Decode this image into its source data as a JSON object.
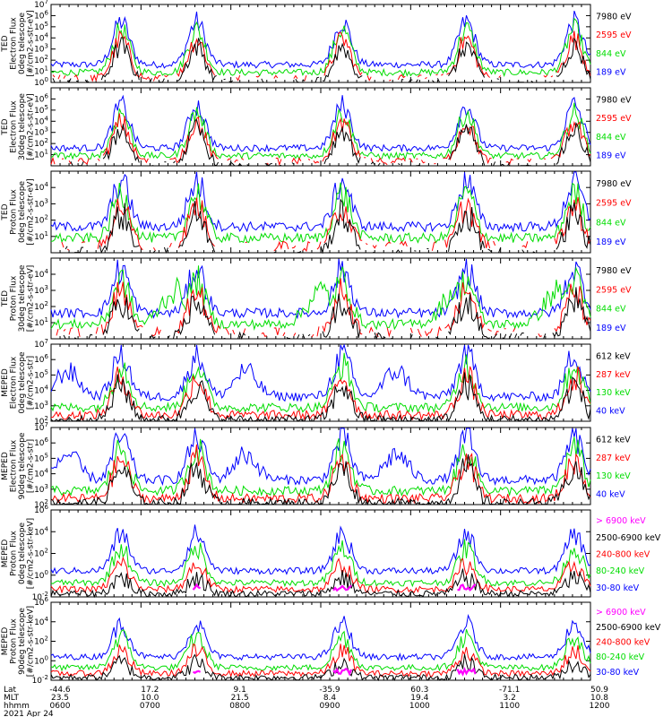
{
  "footer": {
    "rows": [
      "Lat",
      "MLT",
      "hhmm"
    ],
    "date": "2021 Apr 24",
    "columns": [
      {
        "lat": "-44.6",
        "mlt": "23.5",
        "hhmm": "0600"
      },
      {
        "lat": "17.2",
        "mlt": "10.0",
        "hhmm": "0700"
      },
      {
        "lat": "9.1",
        "mlt": "21.5",
        "hhmm": "0800"
      },
      {
        "lat": "-35.9",
        "mlt": "8.4",
        "hhmm": "0900"
      },
      {
        "lat": "60.3",
        "mlt": "19.4",
        "hhmm": "1000"
      },
      {
        "lat": "-71.1",
        "mlt": "3.2",
        "hhmm": "1100"
      },
      {
        "lat": "50.9",
        "mlt": "10.8",
        "hhmm": "1200"
      }
    ]
  },
  "chart_data": [
    {
      "type": "line",
      "ylabel": [
        "TED",
        "Electron Flux",
        "0deg telescope",
        "[#/cm2-s-str-eV]"
      ],
      "y_scale": "log",
      "ylim": [
        1,
        10000000
      ],
      "yticks": [
        "10^0",
        "10^1",
        "10^2",
        "10^3",
        "10^4",
        "10^5",
        "10^6",
        "10^7"
      ],
      "series": [
        {
          "name": "7980 eV",
          "color": "#000000"
        },
        {
          "name": "2595 eV",
          "color": "#ff0000"
        },
        {
          "name": "844 eV",
          "color": "#00dd00"
        },
        {
          "name": "189 eV",
          "color": "#0000ff"
        }
      ]
    },
    {
      "type": "line",
      "ylabel": [
        "TED",
        "Electron Flux",
        "30deg telescope",
        "[#/cm2-s-str-eV]"
      ],
      "y_scale": "log",
      "ylim": [
        1,
        10000000
      ],
      "yticks": [
        "10^1",
        "10^2",
        "10^3",
        "10^4",
        "10^5",
        "10^6"
      ],
      "series": [
        {
          "name": "7980 eV",
          "color": "#000000"
        },
        {
          "name": "2595 eV",
          "color": "#ff0000"
        },
        {
          "name": "844 eV",
          "color": "#00dd00"
        },
        {
          "name": "189 eV",
          "color": "#0000ff"
        }
      ]
    },
    {
      "type": "line",
      "ylabel": [
        "TED",
        "Proton Flux",
        "0deg telescope",
        "[#/cm2-s-str-eV]"
      ],
      "y_scale": "log",
      "ylim": [
        1,
        100000
      ],
      "yticks": [
        "10^1",
        "10^2",
        "10^3",
        "10^4"
      ],
      "series": [
        {
          "name": "7980 eV",
          "color": "#000000"
        },
        {
          "name": "2595 eV",
          "color": "#ff0000"
        },
        {
          "name": "844 eV",
          "color": "#00dd00"
        },
        {
          "name": "189 eV",
          "color": "#0000ff"
        }
      ]
    },
    {
      "type": "line",
      "ylabel": [
        "TED",
        "Proton Flux",
        "30deg telescope",
        "[#/cm2-s-str-eV]"
      ],
      "y_scale": "log",
      "ylim": [
        1,
        100000
      ],
      "yticks": [
        "10^1",
        "10^2",
        "10^3",
        "10^4"
      ],
      "series": [
        {
          "name": "7980 eV",
          "color": "#000000"
        },
        {
          "name": "2595 eV",
          "color": "#ff0000"
        },
        {
          "name": "844 eV",
          "color": "#00dd00"
        },
        {
          "name": "189 eV",
          "color": "#0000ff"
        }
      ]
    },
    {
      "type": "line",
      "ylabel": [
        "MEPED",
        "Electron Flux",
        "0deg telescope",
        "[#/cm2-s-str]"
      ],
      "y_scale": "log",
      "ylim": [
        100,
        10000000
      ],
      "yticks": [
        "10^2",
        "10^3",
        "10^4",
        "10^5",
        "10^6",
        "10^7"
      ],
      "series": [
        {
          "name": "612 keV",
          "color": "#000000"
        },
        {
          "name": "287 keV",
          "color": "#ff0000"
        },
        {
          "name": "130 keV",
          "color": "#00dd00"
        },
        {
          "name": "40 keV",
          "color": "#0000ff"
        }
      ]
    },
    {
      "type": "line",
      "ylabel": [
        "MEPED",
        "Electron Flux",
        "90deg telescope",
        "[#/cm2-s-str]"
      ],
      "y_scale": "log",
      "ylim": [
        100,
        10000000
      ],
      "yticks": [
        "10^2",
        "10^3",
        "10^4",
        "10^5",
        "10^6",
        "10^7"
      ],
      "series": [
        {
          "name": "612 keV",
          "color": "#000000"
        },
        {
          "name": "287 keV",
          "color": "#ff0000"
        },
        {
          "name": "130 keV",
          "color": "#00dd00"
        },
        {
          "name": "40 keV",
          "color": "#0000ff"
        }
      ]
    },
    {
      "type": "line",
      "ylabel": [
        "MEPED",
        "Proton Flux",
        "0deg telescope",
        "[#/cm2-s-str-keV]"
      ],
      "y_scale": "log",
      "ylim": [
        0.01,
        1000000
      ],
      "yticks": [
        "10^-2",
        "10^0",
        "10^2",
        "10^4",
        "10^6"
      ],
      "series": [
        {
          "name": "> 6900 keV",
          "color": "#ff00ff"
        },
        {
          "name": "2500-6900 keV",
          "color": "#000000"
        },
        {
          "name": "240-800 keV",
          "color": "#ff0000"
        },
        {
          "name": "80-240 keV",
          "color": "#00dd00"
        },
        {
          "name": "30-80 keV",
          "color": "#0000ff"
        }
      ]
    },
    {
      "type": "line",
      "ylabel": [
        "MEPED",
        "Proton Flux",
        "90deg telescope",
        "[#/cm2-s-str-keV]"
      ],
      "y_scale": "log",
      "ylim": [
        0.01,
        1000000
      ],
      "yticks": [
        "10^-2",
        "10^0",
        "10^2",
        "10^4",
        "10^6"
      ],
      "series": [
        {
          "name": "> 6900 keV",
          "color": "#ff00ff"
        },
        {
          "name": "2500-6900 keV",
          "color": "#000000"
        },
        {
          "name": "240-800 keV",
          "color": "#ff0000"
        },
        {
          "name": "80-240 keV",
          "color": "#00dd00"
        },
        {
          "name": "30-80 keV",
          "color": "#0000ff"
        }
      ]
    }
  ]
}
